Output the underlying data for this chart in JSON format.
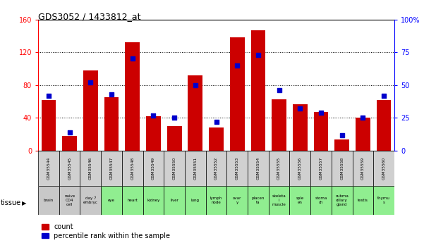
{
  "title": "GDS3052 / 1433812_at",
  "gsm_ids": [
    "GSM35544",
    "GSM35545",
    "GSM35546",
    "GSM35547",
    "GSM35548",
    "GSM35549",
    "GSM35550",
    "GSM35551",
    "GSM35552",
    "GSM35553",
    "GSM35554",
    "GSM35555",
    "GSM35556",
    "GSM35557",
    "GSM35558",
    "GSM35559",
    "GSM35560"
  ],
  "tissues": [
    "brain",
    "naive\nCD4\ncell",
    "day 7\nembryc",
    "eye",
    "heart",
    "kidney",
    "liver",
    "lung",
    "lymph\nnode",
    "ovar\ny",
    "placen\nta",
    "skeleta\nl\nmuscle",
    "sple\nen",
    "stoma\nch",
    "subma\nxillary\ngland",
    "testis",
    "thymu\ns"
  ],
  "tissue_colors": [
    "#c8c8c8",
    "#c8c8c8",
    "#c8c8c8",
    "#90ee90",
    "#90ee90",
    "#90ee90",
    "#90ee90",
    "#90ee90",
    "#90ee90",
    "#90ee90",
    "#90ee90",
    "#90ee90",
    "#90ee90",
    "#90ee90",
    "#90ee90",
    "#90ee90",
    "#90ee90"
  ],
  "count": [
    62,
    18,
    98,
    65,
    132,
    42,
    30,
    92,
    28,
    138,
    147,
    63,
    57,
    47,
    14,
    40,
    62
  ],
  "percentile": [
    42,
    14,
    52,
    43,
    70,
    27,
    25,
    50,
    22,
    65,
    73,
    46,
    32,
    29,
    12,
    25,
    42
  ],
  "ylim_left": [
    0,
    160
  ],
  "ylim_right": [
    0,
    100
  ],
  "yticks_left": [
    0,
    40,
    80,
    120,
    160
  ],
  "yticks_right": [
    0,
    25,
    50,
    75,
    100
  ],
  "bar_color": "#cc0000",
  "dot_color": "#0000cc",
  "bg_color": "#ffffff",
  "grid_color": "#000000",
  "legend_count_label": "count",
  "legend_pct_label": "percentile rank within the sample"
}
